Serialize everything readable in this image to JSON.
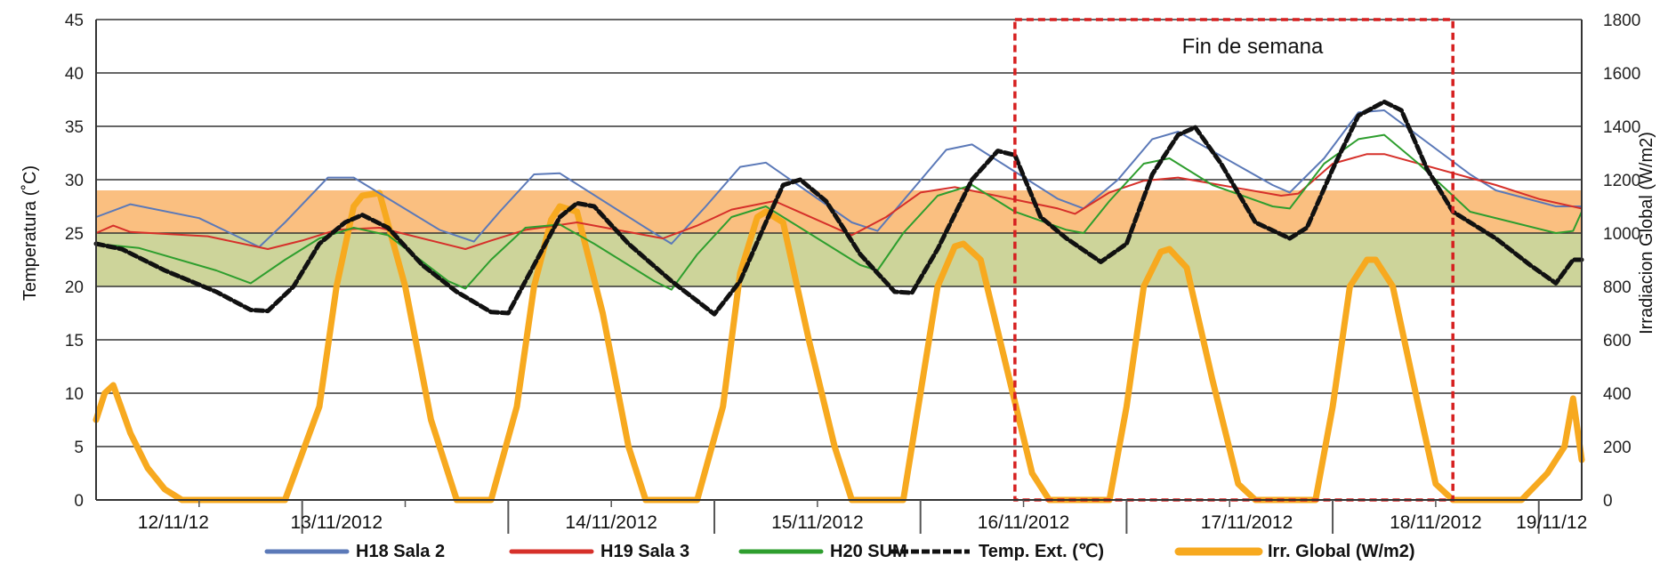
{
  "chart_data": {
    "type": "line",
    "annotation": "Fin de semana",
    "ylabel": "Temperatura (˚C)",
    "y2label": "Irradiacion Global (W/m2)",
    "ylim": [
      0,
      45
    ],
    "y2lim": [
      0,
      1800
    ],
    "yticks": [
      "0",
      "5",
      "10",
      "15",
      "20",
      "25",
      "30",
      "35",
      "40",
      "45"
    ],
    "y2ticks": [
      "0",
      "200",
      "400",
      "600",
      "800",
      "1000",
      "1200",
      "1400",
      "1600",
      "1800"
    ],
    "dates": [
      "12/11/12",
      "13/11/2012",
      "14/11/2012",
      "15/11/2012",
      "16/11/2012",
      "17/11/2012",
      "18/11/2012",
      "19/11/12"
    ],
    "x_unit": "hours since 12/11/12 00:00 (day-dividers every 24h)",
    "xlim": [
      0,
      173
    ],
    "shaded_bands": [
      {
        "name": "comfort-warm",
        "from": 25,
        "to": 29,
        "color": "#f9b872"
      },
      {
        "name": "comfort-mild",
        "from": 20,
        "to": 25,
        "color": "#c8cf8f"
      }
    ],
    "weekend_box": {
      "from": 107,
      "to": 158
    },
    "series": [
      {
        "name": "H18 Sala 2",
        "color": "#5b79b8",
        "axis": "left",
        "style": "thin",
        "points": [
          [
            0,
            26.5
          ],
          [
            4,
            27.7
          ],
          [
            12,
            26.4
          ],
          [
            19,
            23.7
          ],
          [
            22,
            26
          ],
          [
            27,
            30.2
          ],
          [
            30,
            30.2
          ],
          [
            40,
            25.3
          ],
          [
            44,
            24.2
          ],
          [
            47,
            27
          ],
          [
            51,
            30.5
          ],
          [
            54,
            30.6
          ],
          [
            64,
            25.5
          ],
          [
            67,
            24
          ],
          [
            71,
            27.5
          ],
          [
            75,
            31.2
          ],
          [
            78,
            31.6
          ],
          [
            88,
            26
          ],
          [
            91,
            25.2
          ],
          [
            95,
            29
          ],
          [
            99,
            32.8
          ],
          [
            102,
            33.3
          ],
          [
            112,
            28.2
          ],
          [
            115,
            27.3
          ],
          [
            119,
            30
          ],
          [
            123,
            33.8
          ],
          [
            126,
            34.5
          ],
          [
            137,
            29.5
          ],
          [
            139,
            28.8
          ],
          [
            143,
            32
          ],
          [
            147,
            36.3
          ],
          [
            150,
            36.5
          ],
          [
            160,
            30.5
          ],
          [
            163,
            29
          ],
          [
            170,
            27.5
          ],
          [
            173,
            27.5
          ]
        ]
      },
      {
        "name": "H19 Sala 3",
        "color": "#d6302a",
        "axis": "left",
        "style": "thin",
        "points": [
          [
            0,
            25
          ],
          [
            2,
            25.7
          ],
          [
            4,
            25.1
          ],
          [
            13,
            24.7
          ],
          [
            20,
            23.5
          ],
          [
            24,
            24.3
          ],
          [
            28,
            25.3
          ],
          [
            33,
            25.5
          ],
          [
            43,
            23.5
          ],
          [
            46,
            24.3
          ],
          [
            50,
            25.3
          ],
          [
            56,
            26
          ],
          [
            66,
            24.5
          ],
          [
            70,
            25.7
          ],
          [
            74,
            27.2
          ],
          [
            79,
            28
          ],
          [
            88,
            24.8
          ],
          [
            92,
            26.5
          ],
          [
            96,
            28.8
          ],
          [
            100,
            29.3
          ],
          [
            112,
            27.3
          ],
          [
            114,
            26.8
          ],
          [
            118,
            28.8
          ],
          [
            122,
            29.9
          ],
          [
            126,
            30.2
          ],
          [
            138,
            28.5
          ],
          [
            140,
            28.7
          ],
          [
            144,
            31.5
          ],
          [
            148,
            32.4
          ],
          [
            150,
            32.4
          ],
          [
            163,
            29.5
          ],
          [
            168,
            28.2
          ],
          [
            173,
            27.3
          ]
        ]
      },
      {
        "name": "H20 SUM",
        "color": "#2e9e2e",
        "axis": "left",
        "style": "thin",
        "points": [
          [
            0,
            24
          ],
          [
            5,
            23.6
          ],
          [
            14,
            21.5
          ],
          [
            18,
            20.3
          ],
          [
            22,
            22.5
          ],
          [
            26,
            24.5
          ],
          [
            30,
            25.5
          ],
          [
            34,
            24.8
          ],
          [
            41,
            20.5
          ],
          [
            43,
            19.8
          ],
          [
            46,
            22.5
          ],
          [
            50,
            25.5
          ],
          [
            54,
            25.8
          ],
          [
            58,
            24
          ],
          [
            65,
            20.5
          ],
          [
            67,
            19.7
          ],
          [
            70,
            23
          ],
          [
            74,
            26.5
          ],
          [
            78,
            27.5
          ],
          [
            82,
            25.5
          ],
          [
            89,
            22
          ],
          [
            91,
            21.5
          ],
          [
            94,
            25
          ],
          [
            98,
            28.5
          ],
          [
            102,
            29.5
          ],
          [
            107,
            27
          ],
          [
            113,
            25.3
          ],
          [
            115,
            25
          ],
          [
            118,
            28
          ],
          [
            122,
            31.5
          ],
          [
            125,
            32
          ],
          [
            130,
            29.5
          ],
          [
            137,
            27.5
          ],
          [
            139,
            27.3
          ],
          [
            143,
            31.5
          ],
          [
            147,
            33.8
          ],
          [
            150,
            34.2
          ],
          [
            154,
            31.5
          ],
          [
            160,
            27
          ],
          [
            165,
            26
          ],
          [
            170,
            25
          ],
          [
            172,
            25.2
          ],
          [
            173,
            27
          ]
        ]
      },
      {
        "name": "Temp. Ext. (℃)",
        "color": "#111111",
        "axis": "left",
        "style": "dashed",
        "points": [
          [
            0,
            24
          ],
          [
            3,
            23.5
          ],
          [
            8,
            21.5
          ],
          [
            14,
            19.5
          ],
          [
            18,
            17.8
          ],
          [
            20,
            17.7
          ],
          [
            23,
            20
          ],
          [
            26,
            24
          ],
          [
            29,
            26
          ],
          [
            31,
            26.7
          ],
          [
            34,
            25.5
          ],
          [
            38,
            22
          ],
          [
            42,
            19.5
          ],
          [
            46,
            17.6
          ],
          [
            48,
            17.5
          ],
          [
            51,
            22
          ],
          [
            54,
            26.5
          ],
          [
            56,
            27.8
          ],
          [
            58,
            27.5
          ],
          [
            62,
            24
          ],
          [
            67,
            20.5
          ],
          [
            72,
            17.4
          ],
          [
            75,
            20.5
          ],
          [
            78,
            26
          ],
          [
            80,
            29.5
          ],
          [
            82,
            30
          ],
          [
            85,
            28
          ],
          [
            89,
            23
          ],
          [
            93,
            19.5
          ],
          [
            95,
            19.4
          ],
          [
            98,
            23.5
          ],
          [
            102,
            30
          ],
          [
            105,
            32.7
          ],
          [
            107,
            32.3
          ],
          [
            110,
            26.5
          ],
          [
            113,
            24.5
          ],
          [
            117,
            22.3
          ],
          [
            120,
            24
          ],
          [
            123,
            30.5
          ],
          [
            126,
            34.2
          ],
          [
            128,
            34.9
          ],
          [
            131,
            31.5
          ],
          [
            135,
            26
          ],
          [
            139,
            24.5
          ],
          [
            141,
            25.5
          ],
          [
            144,
            31
          ],
          [
            147,
            36
          ],
          [
            150,
            37.3
          ],
          [
            152,
            36.5
          ],
          [
            155,
            31
          ],
          [
            158,
            27
          ],
          [
            163,
            24.5
          ],
          [
            167,
            22
          ],
          [
            170,
            20.3
          ],
          [
            172,
            22.5
          ],
          [
            173,
            22.5
          ]
        ]
      },
      {
        "name": "Irr. Global (W/m2)",
        "color": "#f7a91f",
        "axis": "right",
        "style": "thick",
        "points": [
          [
            0,
            300
          ],
          [
            1,
            400
          ],
          [
            2,
            430
          ],
          [
            4,
            250
          ],
          [
            6,
            120
          ],
          [
            8,
            40
          ],
          [
            10,
            0
          ],
          [
            22,
            0
          ],
          [
            26,
            350
          ],
          [
            28,
            800
          ],
          [
            30,
            1100
          ],
          [
            31,
            1140
          ],
          [
            33,
            1150
          ],
          [
            36,
            800
          ],
          [
            39,
            300
          ],
          [
            42,
            0
          ],
          [
            46,
            0
          ],
          [
            49,
            350
          ],
          [
            51,
            800
          ],
          [
            53,
            1050
          ],
          [
            54,
            1100
          ],
          [
            56,
            1080
          ],
          [
            59,
            700
          ],
          [
            62,
            200
          ],
          [
            64,
            0
          ],
          [
            70,
            0
          ],
          [
            73,
            350
          ],
          [
            75,
            850
          ],
          [
            77,
            1060
          ],
          [
            78,
            1080
          ],
          [
            80,
            1040
          ],
          [
            83,
            600
          ],
          [
            86,
            200
          ],
          [
            88,
            0
          ],
          [
            94,
            0
          ],
          [
            96,
            400
          ],
          [
            98,
            800
          ],
          [
            100,
            950
          ],
          [
            101,
            960
          ],
          [
            103,
            900
          ],
          [
            106,
            500
          ],
          [
            109,
            100
          ],
          [
            111,
            0
          ],
          [
            118,
            0
          ],
          [
            120,
            350
          ],
          [
            122,
            800
          ],
          [
            124,
            930
          ],
          [
            125,
            940
          ],
          [
            127,
            870
          ],
          [
            130,
            450
          ],
          [
            133,
            60
          ],
          [
            135,
            0
          ],
          [
            142,
            0
          ],
          [
            144,
            350
          ],
          [
            146,
            800
          ],
          [
            148,
            900
          ],
          [
            149,
            900
          ],
          [
            151,
            800
          ],
          [
            154,
            350
          ],
          [
            156,
            60
          ],
          [
            158,
            0
          ],
          [
            166,
            0
          ],
          [
            169,
            100
          ],
          [
            171,
            200
          ],
          [
            172,
            380
          ],
          [
            173,
            150
          ]
        ]
      }
    ]
  },
  "legend": [
    {
      "label": "H18 Sala 2",
      "color": "#5b79b8",
      "style": "line"
    },
    {
      "label": "H19 Sala 3",
      "color": "#d6302a",
      "style": "line"
    },
    {
      "label": "H20 SUM",
      "color": "#2e9e2e",
      "style": "line"
    },
    {
      "label": "Temp. Ext. (℃)",
      "color": "#111111",
      "style": "dashed"
    },
    {
      "label": "Irr. Global (W/m2)",
      "color": "#f7a91f",
      "style": "thick"
    }
  ]
}
